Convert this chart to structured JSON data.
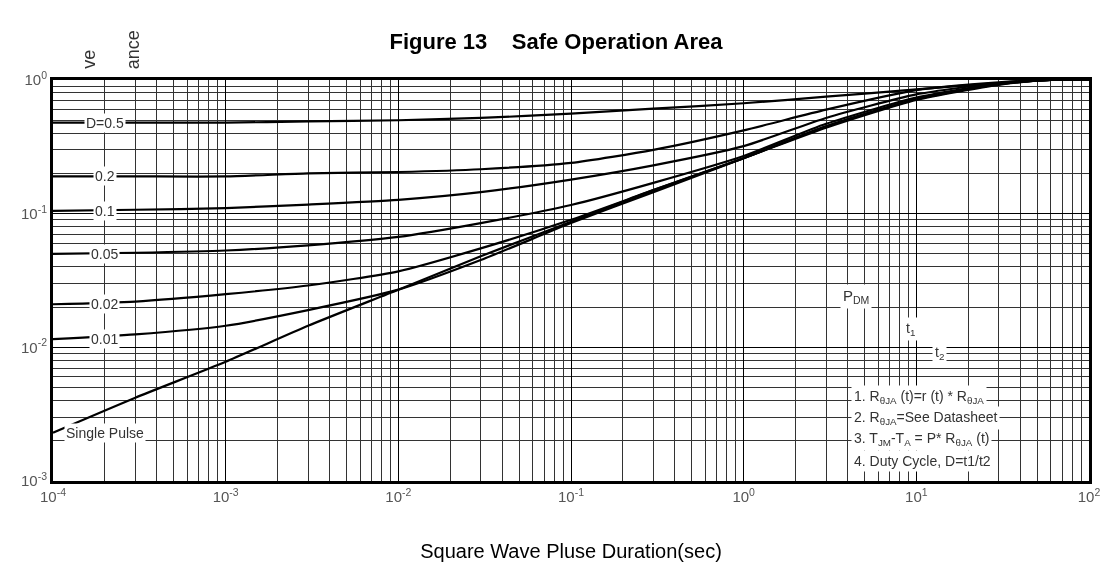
{
  "chart_data": {
    "type": "line",
    "title": "Figure 13    Safe Operation Area",
    "xlabel": "Square Wave Pluse Duration(sec)",
    "log": "xy",
    "grid": true,
    "legend": false,
    "marker": "none",
    "line_style": "solid",
    "x": [
      0.0001,
      0.0003,
      0.001,
      0.003,
      0.01,
      0.03,
      0.1,
      0.3,
      1,
      3,
      10,
      30,
      60,
      100
    ],
    "series": [
      {
        "name": "D=0.5",
        "color": "#000000",
        "values": [
          0.48,
          0.48,
          0.48,
          0.49,
          0.5,
          0.52,
          0.56,
          0.61,
          0.67,
          0.75,
          0.85,
          0.95,
          1.0,
          1.0
        ]
      },
      {
        "name": "0.2",
        "color": "#000000",
        "values": [
          0.19,
          0.19,
          0.19,
          0.2,
          0.205,
          0.215,
          0.24,
          0.3,
          0.42,
          0.6,
          0.84,
          0.96,
          1.0,
          1.0
        ]
      },
      {
        "name": "0.1",
        "color": "#000000",
        "values": [
          0.105,
          0.107,
          0.11,
          0.117,
          0.127,
          0.145,
          0.18,
          0.23,
          0.32,
          0.52,
          0.78,
          0.95,
          1.0,
          1.0
        ]
      },
      {
        "name": "0.05",
        "color": "#000000",
        "values": [
          0.05,
          0.051,
          0.053,
          0.058,
          0.067,
          0.085,
          0.116,
          0.17,
          0.27,
          0.47,
          0.74,
          0.94,
          1.0,
          1.0
        ]
      },
      {
        "name": "0.02",
        "color": "#000000",
        "values": [
          0.021,
          0.022,
          0.025,
          0.029,
          0.037,
          0.055,
          0.09,
          0.15,
          0.26,
          0.45,
          0.72,
          0.93,
          1.0,
          1.0
        ]
      },
      {
        "name": "0.01",
        "color": "#000000",
        "values": [
          0.0115,
          0.0125,
          0.0145,
          0.019,
          0.027,
          0.045,
          0.085,
          0.145,
          0.26,
          0.45,
          0.72,
          0.93,
          1.0,
          1.0
        ]
      },
      {
        "name": "Single Pulse",
        "color": "#000000",
        "values": [
          0.0023,
          0.0042,
          0.0078,
          0.0145,
          0.027,
          0.048,
          0.087,
          0.15,
          0.26,
          0.44,
          0.71,
          0.92,
          1.0,
          1.0
        ]
      }
    ],
    "xlim": [
      0.0001,
      100
    ],
    "ylim": [
      0.001,
      1
    ],
    "xticks": [
      {
        "value": 0.0001,
        "label": "10$^{-4}$"
      },
      {
        "value": 0.001,
        "label": "10$^{-3}$"
      },
      {
        "value": 0.01,
        "label": "10$^{-2}$"
      },
      {
        "value": 0.1,
        "label": "10$^{-1}$"
      },
      {
        "value": 1,
        "label": "10$^{0}$"
      },
      {
        "value": 10,
        "label": "10$^{1}$"
      },
      {
        "value": 100,
        "label": "10$^{2}$"
      }
    ],
    "yticks": [
      {
        "value": 0.001,
        "label": "10$^{-3}$"
      },
      {
        "value": 0.01,
        "label": "10$^{-2}$"
      },
      {
        "value": 0.1,
        "label": "10$^{-1}$"
      },
      {
        "value": 1,
        "label": "10$^{0}$"
      }
    ],
    "annotations": [
      "ve",
      "ance",
      "P$_{DM}$",
      "t$_{1}$",
      "t$_{2}$",
      "1. R$_{θJA}$ (t)=r (t) * R$_{θJA}$",
      "2. R$_{θJA}$=See Datasheet",
      "3. T$_{JM}$-T$_{A}$ = P* R$_{θJA}$ (t)",
      "4. Duty Cycle, D=t1/t2"
    ]
  }
}
